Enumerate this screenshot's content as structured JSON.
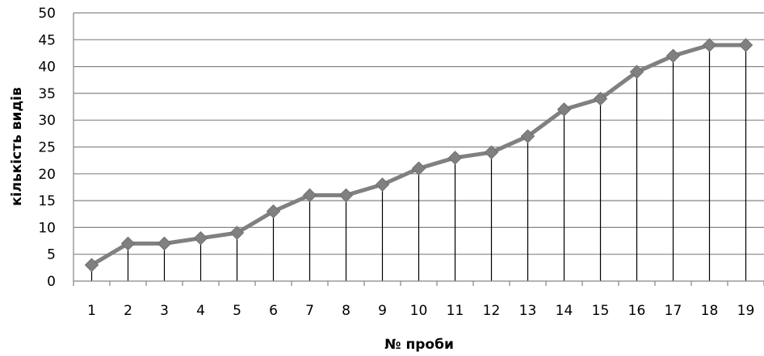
{
  "chart_data": {
    "type": "line",
    "title": "",
    "xlabel": "№ проби",
    "ylabel": "кількість видів",
    "categories": [
      "1",
      "2",
      "3",
      "4",
      "5",
      "6",
      "7",
      "8",
      "9",
      "10",
      "11",
      "12",
      "13",
      "14",
      "15",
      "16",
      "17",
      "18",
      "19"
    ],
    "series": [
      {
        "values": [
          3,
          7,
          7,
          8,
          9,
          13,
          16,
          16,
          18,
          21,
          23,
          24,
          27,
          32,
          34,
          39,
          42,
          44,
          44
        ]
      }
    ],
    "ylim": [
      0,
      50
    ],
    "yticks": [
      "0",
      "5",
      "10",
      "15",
      "20",
      "25",
      "30",
      "35",
      "40",
      "45",
      "50"
    ],
    "grid": "horizontal",
    "drop_lines": true,
    "marker": "diamond",
    "line_color": "#808080",
    "marker_color": "#808080"
  }
}
